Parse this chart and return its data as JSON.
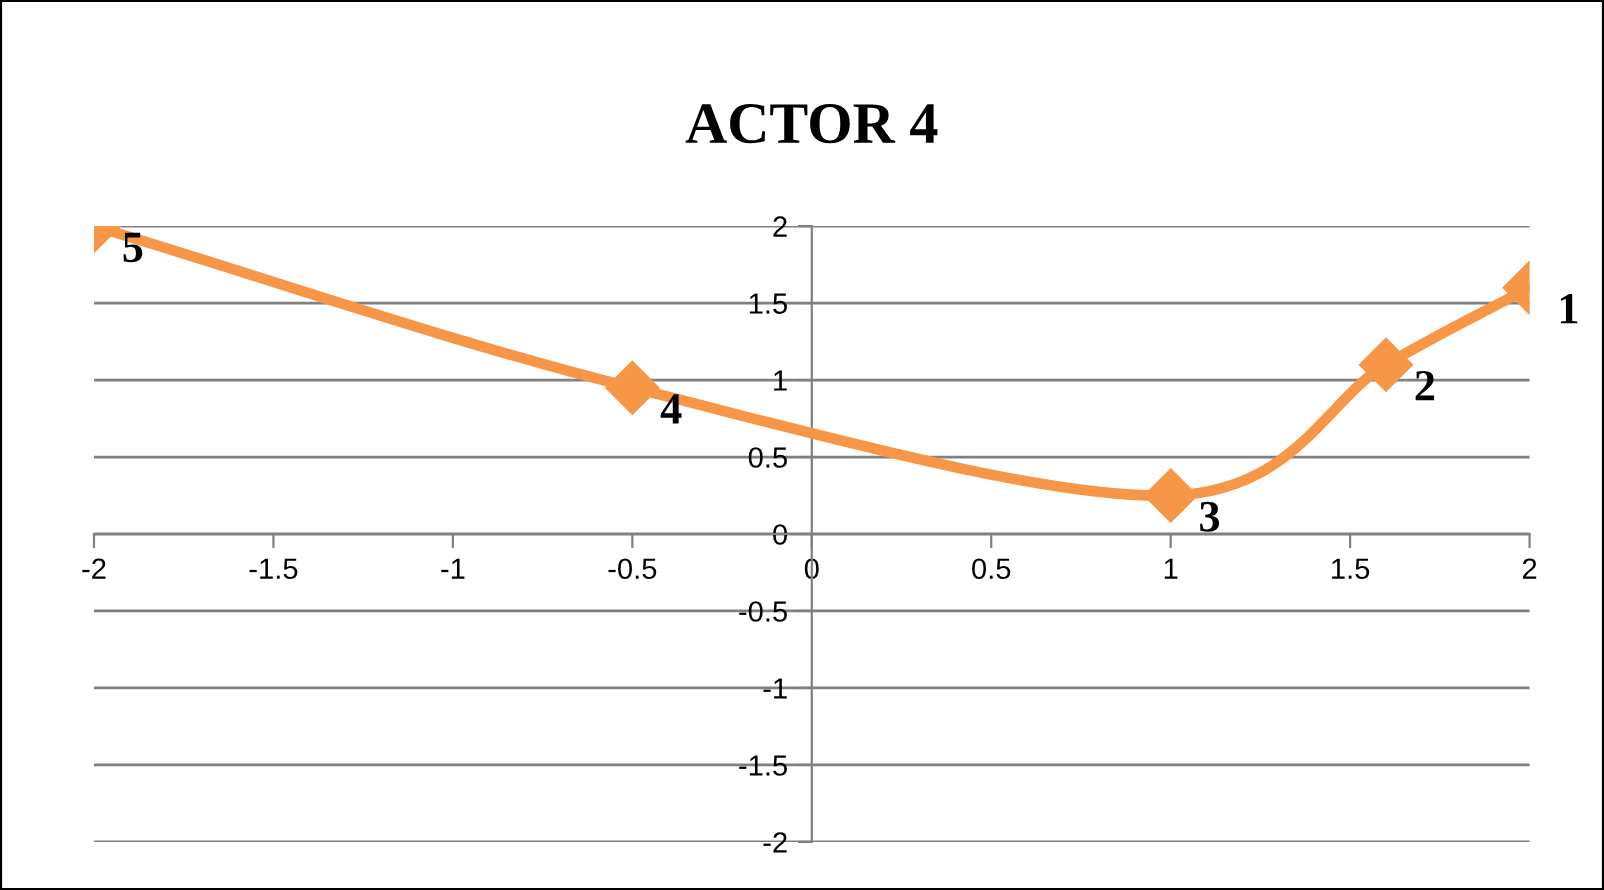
{
  "chart_data": {
    "type": "line",
    "title": "ACTOR 4",
    "x": [
      -2,
      -0.5,
      1,
      1.6,
      2
    ],
    "series": [
      {
        "color": "#f79646",
        "values": [
          2,
          0.95,
          0.25,
          1.1,
          1.6
        ]
      }
    ],
    "xlim": [
      -2,
      2
    ],
    "xticks": [
      -2,
      -1.5,
      -1,
      -0.5,
      0,
      0.5,
      1,
      1.5,
      2
    ],
    "ylim": [
      -2,
      2
    ],
    "yticks": [
      -2,
      -1.5,
      -1,
      -0.5,
      0,
      0.5,
      1,
      1.5,
      2
    ],
    "grid": "y",
    "marker": "diamond",
    "line_style": "solid",
    "legend": false,
    "annotations": [
      {
        "text": "5",
        "x": -2,
        "y": 2
      },
      {
        "text": "4",
        "x": -0.5,
        "y": 0.95
      },
      {
        "text": "3",
        "x": 1,
        "y": 0.25
      },
      {
        "text": "2",
        "x": 1.6,
        "y": 1.1
      },
      {
        "text": "1",
        "x": 2,
        "y": 1.6
      }
    ]
  }
}
